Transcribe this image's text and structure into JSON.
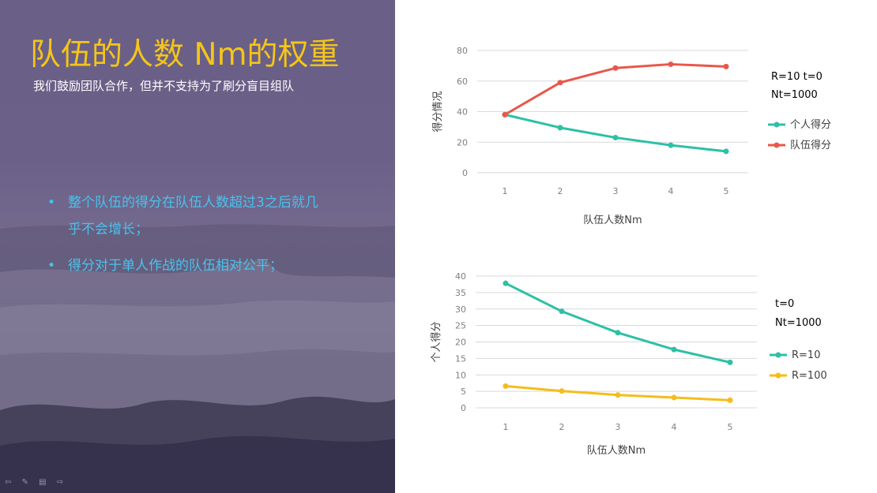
{
  "slide": {
    "title": "队伍的人数 Nm的权重",
    "subtitle": "我们鼓励团队合作，但并不支持为了刷分盲目组队",
    "bullets": [
      {
        "marker": "•",
        "text": "整个队伍的得分在队伍人数超过3之后就几乎不会增长；"
      },
      {
        "marker": "•",
        "text": "得分对于单人作战的队伍相对公平；"
      }
    ],
    "nav_icons": "⇦ ✎ ▤ ⇨"
  },
  "colors": {
    "title": "#f5c518",
    "bullet_text": "#48c2ee",
    "teal": "#2dc0a6",
    "red": "#e8574a",
    "yellow": "#f5bd1a",
    "gridline": "#d9d9d9"
  },
  "chart_data": [
    {
      "type": "line",
      "x": [
        1,
        2,
        3,
        4,
        5
      ],
      "xticks": [
        "1",
        "2",
        "3",
        "4",
        "5"
      ],
      "xlabel": "队伍人数Nm",
      "ylabel": "得分情况",
      "ylim": [
        0,
        80
      ],
      "yticks": [
        0,
        20,
        40,
        60,
        80
      ],
      "grid": true,
      "legend_position": "right",
      "annotations": [
        "R=10   t=0",
        "Nt=1000"
      ],
      "series": [
        {
          "name": "个人得分",
          "color": "#2dc0a6",
          "values": [
            38,
            29.5,
            23,
            18,
            14
          ]
        },
        {
          "name": "队伍得分",
          "color": "#e8574a",
          "values": [
            38,
            59,
            68.5,
            71,
            69.5
          ]
        }
      ]
    },
    {
      "type": "line",
      "x": [
        1,
        2,
        3,
        4,
        5
      ],
      "xticks": [
        "1",
        "2",
        "3",
        "4",
        "5"
      ],
      "xlabel": "队伍人数Nm",
      "ylabel": "个人得分",
      "ylim": [
        0,
        40
      ],
      "yticks": [
        0,
        5,
        10,
        15,
        20,
        25,
        30,
        35,
        40
      ],
      "grid": true,
      "legend_position": "right",
      "annotations": [
        "t=0",
        "Nt=1000"
      ],
      "series": [
        {
          "name": "R=10",
          "color": "#2dc0a6",
          "values": [
            37.8,
            29.3,
            22.8,
            17.7,
            13.8
          ]
        },
        {
          "name": "R=100",
          "color": "#f5bd1a",
          "values": [
            6.6,
            5.1,
            3.9,
            3.1,
            2.3
          ]
        }
      ]
    }
  ]
}
